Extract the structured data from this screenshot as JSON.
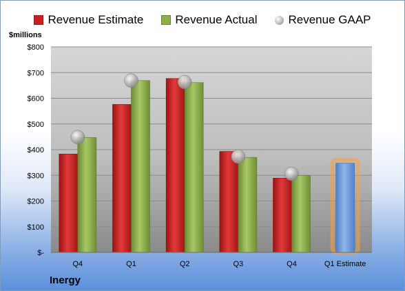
{
  "chart_data": {
    "type": "bar",
    "company": "Inergy",
    "unit_label": "$millions",
    "categories": [
      "Q4",
      "Q1",
      "Q2",
      "Q3",
      "Q4",
      "Q1 Estimate"
    ],
    "series": [
      {
        "name": "Revenue Estimate",
        "kind": "bar",
        "color": "#cc1f1f",
        "values": [
          383,
          576,
          677,
          393,
          289,
          null
        ]
      },
      {
        "name": "Revenue Actual",
        "kind": "bar",
        "color": "#8caf4a",
        "values": [
          447,
          669,
          661,
          370,
          300,
          null
        ]
      },
      {
        "name": "Revenue GAAP",
        "kind": "point",
        "color": "#b8b8b8",
        "values": [
          449,
          669,
          663,
          373,
          306,
          null
        ]
      }
    ],
    "estimate_bar": {
      "category": "Q1 Estimate",
      "value": 347,
      "color": "#6d9ad8",
      "glow": "#f5a23a"
    },
    "ylim": [
      0,
      800
    ],
    "y_ticks": [
      0,
      100,
      200,
      300,
      400,
      500,
      600,
      700,
      800
    ],
    "y_tick_labels": [
      "$-",
      "$100",
      "$200",
      "$300",
      "$400",
      "$500",
      "$600",
      "$700",
      "$800"
    ],
    "legend_position": "top",
    "grid": true
  }
}
